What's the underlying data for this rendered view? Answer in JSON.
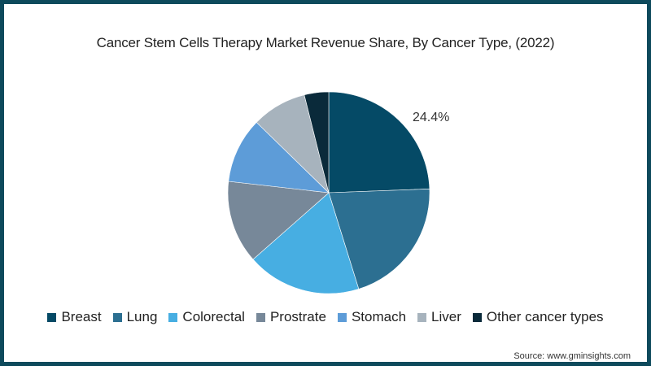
{
  "title": "Cancer Stem Cells Therapy Market Revenue Share, By Cancer Type, (2022)",
  "source": "Source: www.gminsights.com",
  "frame_color": "#0e4a5c",
  "data_label": "24.4%",
  "chart_data": {
    "type": "pie",
    "title": "Cancer Stem Cells Therapy Market Revenue Share, By Cancer Type, (2022)",
    "categories": [
      "Breast",
      "Lung",
      "Colorectal",
      "Prostrate",
      "Stomach",
      "Liver",
      "Other cancer types"
    ],
    "values": [
      24.4,
      20.8,
      18.3,
      13.3,
      10.5,
      8.8,
      3.9
    ],
    "unit": "%",
    "colors": [
      "#054a66",
      "#2c6f91",
      "#47aee2",
      "#778899",
      "#5d9cd8",
      "#a7b3bd",
      "#0a2a3a"
    ],
    "start_angle_deg": 0,
    "direction": "clockwise",
    "labeled_values": [
      {
        "category": "Breast",
        "label": "24.4%"
      }
    ],
    "legend_position": "bottom"
  },
  "legend": [
    {
      "label": "Breast",
      "color": "#054a66"
    },
    {
      "label": "Lung",
      "color": "#2c6f91"
    },
    {
      "label": "Colorectal",
      "color": "#47aee2"
    },
    {
      "label": "Prostrate",
      "color": "#778899"
    },
    {
      "label": "Stomach",
      "color": "#5d9cd8"
    },
    {
      "label": "Liver",
      "color": "#a7b3bd"
    },
    {
      "label": "Other cancer types",
      "color": "#0a2a3a"
    }
  ]
}
